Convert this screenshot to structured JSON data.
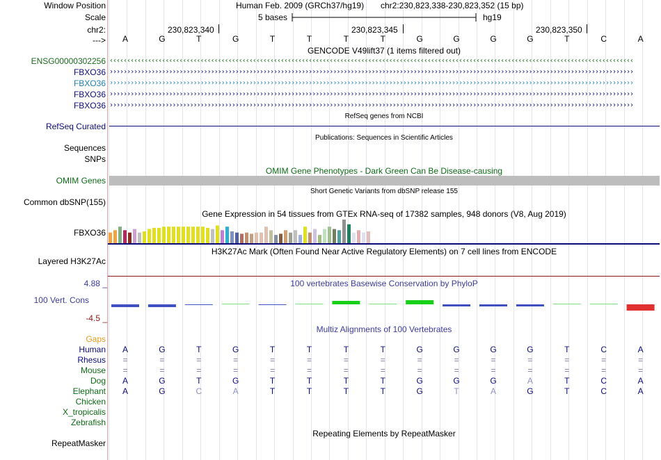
{
  "header": {
    "window_position_label": "Window Position",
    "assembly": "Human Feb. 2009 (GRCh37/hg19)",
    "position": "chr2:230,823,338-230,823,352 (15 bp)",
    "scale_label": "Scale",
    "scale_text": "5 bases",
    "db": "hg19",
    "chrom_label": "chr2:",
    "coords": [
      "230,823,340",
      "230,823,345",
      "230,823,350"
    ],
    "strand_label": "--->"
  },
  "bases": [
    "A",
    "G",
    "T",
    "G",
    "T",
    "T",
    "T",
    "T",
    "G",
    "G",
    "G",
    "G",
    "T",
    "C",
    "A"
  ],
  "gencode": {
    "title": "GENCODE V49lift37 (1 items filtered out)",
    "items": [
      {
        "name": "ENSG00000302256",
        "color": "#196f1e",
        "arrow": "‹"
      },
      {
        "name": "FBXO36",
        "color": "#0c0c78",
        "arrow": "›"
      },
      {
        "name": "FBXO36",
        "color": "#1e7fb4",
        "arrow": "›"
      },
      {
        "name": "FBXO36",
        "color": "#0c0c78",
        "arrow": "›"
      },
      {
        "name": "FBXO36",
        "color": "#0c0c78",
        "arrow": "›"
      }
    ]
  },
  "refseq": {
    "title": "RefSeq genes from NCBI",
    "label": "RefSeq Curated",
    "color": "#0c0c78"
  },
  "publications": {
    "title": "Publications: Sequences in Scientific Articles",
    "sequences_label": "Sequences",
    "snps_label": "SNPs"
  },
  "omim": {
    "title": "OMIM Gene Phenotypes - Dark Green Can Be Disease-causing",
    "label": "OMIM Genes",
    "color": "#0d6b16"
  },
  "dbsnp": {
    "title": "Short Genetic Variants from dbSNP release 155",
    "label": "Common dbSNP(155)"
  },
  "gtex": {
    "title": "Gene Expression in 54 tissues from GTEx RNA-seq of 17382 samples, 948 donors (V8, Aug 2019)",
    "label": "FBXO36",
    "values": [
      0.45,
      0.55,
      0.7,
      0.55,
      0.45,
      0.6,
      0.45,
      0.5,
      0.6,
      0.65,
      0.65,
      0.7,
      0.7,
      0.7,
      0.7,
      0.7,
      0.7,
      0.7,
      0.7,
      0.7,
      0.65,
      0.6,
      0.75,
      0.55,
      0.7,
      0.5,
      0.45,
      0.4,
      0.45,
      0.4,
      0.45,
      0.45,
      0.7,
      0.55,
      0.35,
      0.4,
      0.55,
      0.45,
      0.55,
      0.35,
      0.7,
      0.45,
      0.6,
      0.35,
      0.6,
      0.7,
      0.6,
      0.55,
      1.0,
      0.8,
      0.45,
      0.55,
      0.45,
      0.5
    ],
    "colors": [
      "#f0a340",
      "#f0a340",
      "#80b080",
      "#b02a5a",
      "#8a2c20",
      "#d0a0d0",
      "#c0c0c0",
      "#e0e020",
      "#e0e020",
      "#e0e020",
      "#e0e020",
      "#e0e020",
      "#e0e020",
      "#e0e020",
      "#e0e020",
      "#e0e020",
      "#e0e020",
      "#e0e020",
      "#e0e020",
      "#e0e020",
      "#e0e020",
      "#c0c0c0",
      "#e0e020",
      "#c080d0",
      "#30b0d0",
      "#8090c0",
      "#5060a0",
      "#b07060",
      "#c09070",
      "#c0a080",
      "#e0c0b0",
      "#e0c0b0",
      "#e0c0b0",
      "#c0c0a0",
      "#8090a0",
      "#806040",
      "#d0a070",
      "#a0a090",
      "#c0c0c0",
      "#a0b0e0",
      "#e0e020",
      "#c09070",
      "#d0c0e0",
      "#a0c080",
      "#c0e0c0",
      "#a0c090",
      "#708060",
      "#50a0a0",
      "#909090",
      "#1c8060",
      "#e0e0f0",
      "#e0b0b0",
      "#e0e0f0",
      "#e0c0c0"
    ]
  },
  "h3k27ac": {
    "title": "H3K27Ac Mark (Often Found Near Active Regulatory Elements) on 7 cell lines from ENCODE",
    "label": "Layered H3K27Ac"
  },
  "cons": {
    "title": "100 vertebrates Basewise Conservation by PhyloP",
    "label": "100 Vert. Cons",
    "max": "4.88 _",
    "min": "-4.5 _",
    "values": [
      -0.4,
      -0.4,
      -0.1,
      0,
      -0.1,
      0.1,
      0.5,
      0,
      0.6,
      -0.3,
      -0.3,
      -0.3,
      0,
      0,
      -0.9
    ]
  },
  "multiz": {
    "title": "Multiz Alignments of 100 Vertebrates",
    "gaps_label": "Gaps",
    "species": [
      {
        "name": "Human",
        "bases": [
          "A",
          "G",
          "T",
          "G",
          "T",
          "T",
          "T",
          "T",
          "G",
          "G",
          "G",
          "G",
          "T",
          "C",
          "A"
        ]
      },
      {
        "name": "Rhesus",
        "bases": [
          "=",
          "=",
          "=",
          "=",
          "=",
          "=",
          "=",
          "=",
          "=",
          "=",
          "=",
          "=",
          "=",
          "=",
          "="
        ]
      },
      {
        "name": "Mouse",
        "bases": [
          "=",
          "=",
          "=",
          "=",
          "=",
          "=",
          "=",
          "=",
          "=",
          "=",
          "=",
          "=",
          "=",
          "=",
          "="
        ]
      },
      {
        "name": "Dog",
        "bases": [
          "A",
          "G",
          "T",
          "G",
          "T",
          "T",
          "T",
          "T",
          "G",
          "G",
          "G",
          "A",
          "T",
          "C",
          "A"
        ]
      },
      {
        "name": "Elephant",
        "bases": [
          "A",
          "G",
          "C",
          "A",
          "T",
          "T",
          "T",
          "T",
          "G",
          "T",
          "A",
          "G",
          "T",
          "C",
          "A"
        ]
      },
      {
        "name": "Chicken",
        "bases": []
      },
      {
        "name": "X_tropicalis",
        "bases": []
      },
      {
        "name": "Zebrafish",
        "bases": []
      }
    ]
  },
  "repeatmasker": {
    "title": "Repeating Elements by RepeatMasker",
    "label": "RepeatMasker"
  }
}
